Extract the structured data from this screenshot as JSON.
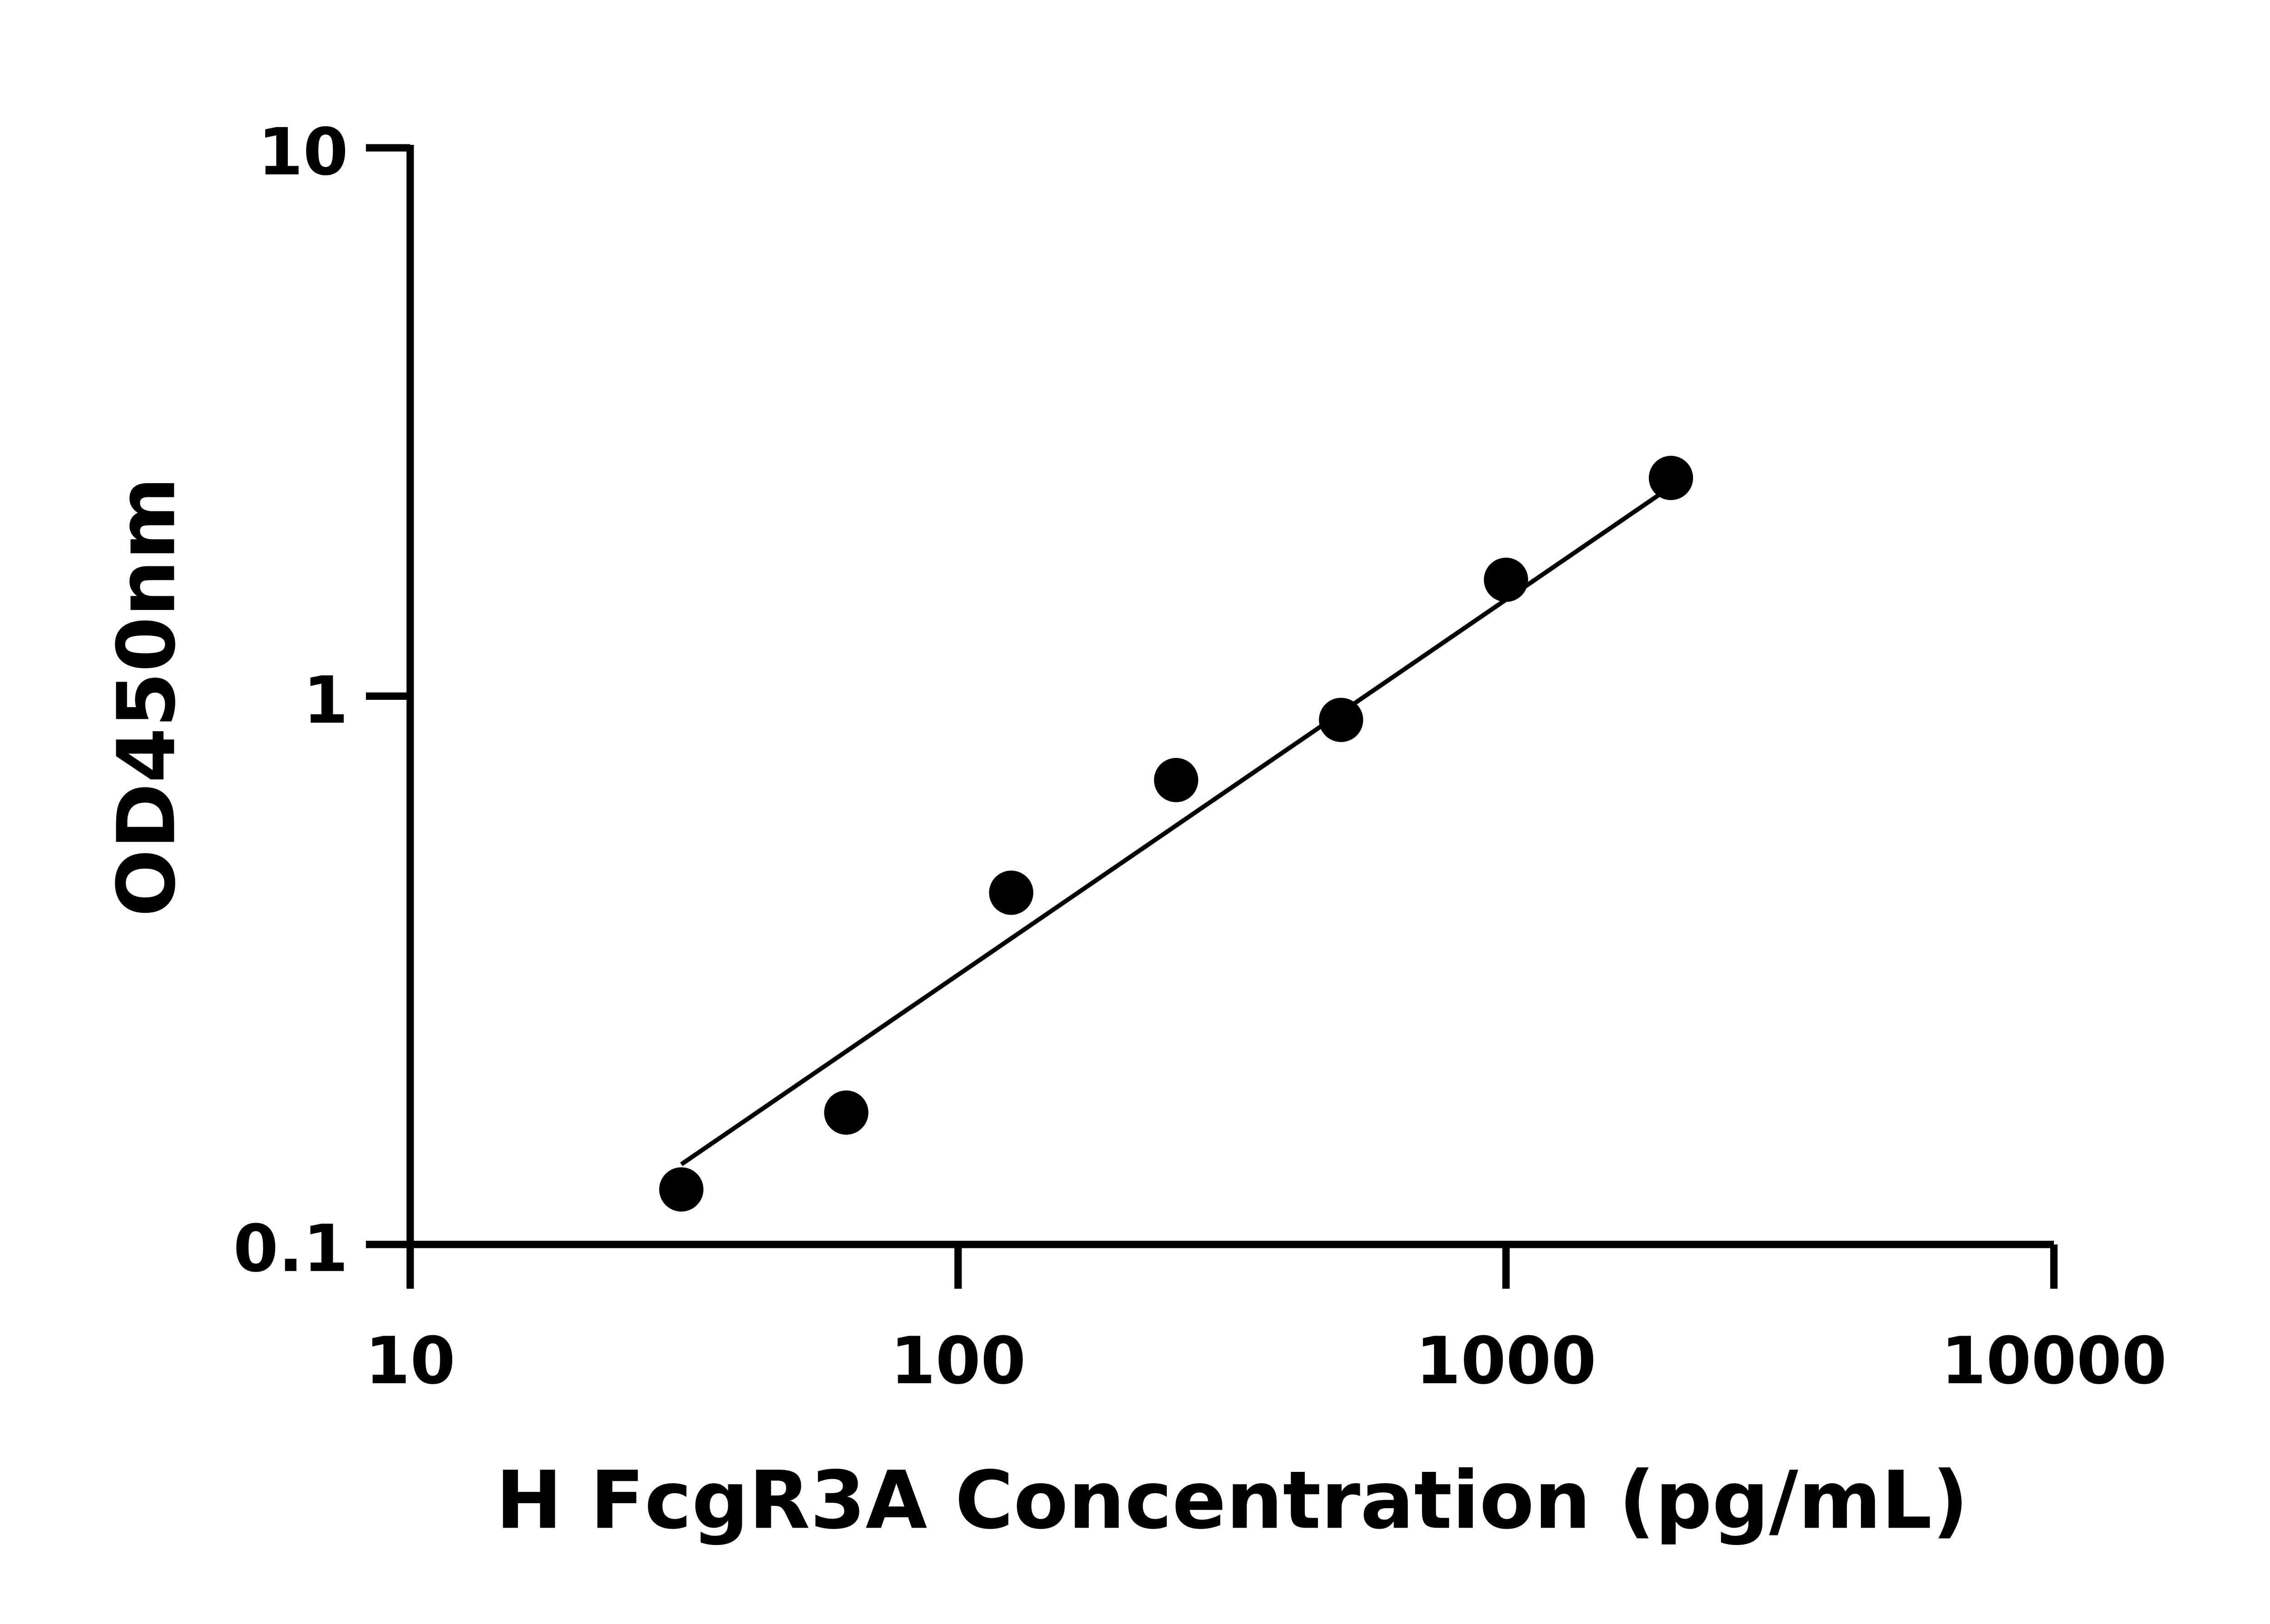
{
  "chart_data": {
    "type": "scatter",
    "title": "",
    "xlabel": "H FcgR3A Concentration (pg/mL)",
    "ylabel": "OD450nm",
    "xscale": "log",
    "yscale": "log",
    "xlim": [
      10,
      10000
    ],
    "ylim": [
      0.1,
      10
    ],
    "xticks": [
      10,
      100,
      1000,
      10000
    ],
    "xtick_labels": [
      "10",
      "100",
      "1000",
      "10000"
    ],
    "yticks": [
      0.1,
      1,
      10
    ],
    "ytick_labels": [
      "0.1",
      "1",
      "10"
    ],
    "grid": false,
    "points": [
      {
        "x": 31.25,
        "y": 0.126
      },
      {
        "x": 62.5,
        "y": 0.174
      },
      {
        "x": 125,
        "y": 0.438
      },
      {
        "x": 250,
        "y": 0.703
      },
      {
        "x": 500,
        "y": 0.905
      },
      {
        "x": 1000,
        "y": 1.63
      },
      {
        "x": 2000,
        "y": 2.5
      }
    ],
    "fit_line": {
      "x": [
        31.25,
        2000
      ],
      "y": [
        0.14,
        2.41
      ]
    },
    "marker_color": "#000000",
    "line_color": "#000000"
  }
}
